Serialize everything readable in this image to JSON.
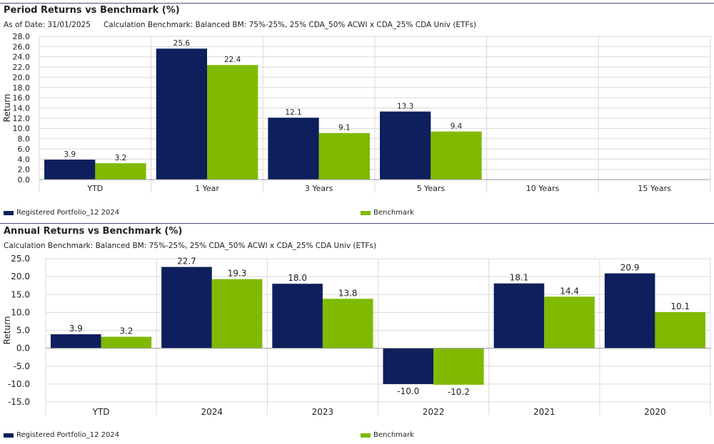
{
  "colors": {
    "portfolio": "#0d1f5c",
    "benchmark": "#7fba00",
    "grid": "#d9d9d9",
    "rule": "#4a5280"
  },
  "chart_data": [
    {
      "type": "bar",
      "title": "Period Returns vs Benchmark (%)",
      "as_of": "As of Date: 31/01/2025",
      "calc_benchmark": "Calculation Benchmark: Balanced BM: 75%-25%, 25% CDA_50% ACWI x CDA_25% CDA Univ (ETFs)",
      "ylabel": "Return",
      "ylim": [
        0,
        28
      ],
      "ystep": 2,
      "ytick_decimals": 1,
      "categories": [
        "YTD",
        "1 Year",
        "3 Years",
        "5 Years",
        "10 Years",
        "15 Years"
      ],
      "series": [
        {
          "name": "Registered Portfolio_12 2024",
          "values": [
            3.9,
            25.6,
            12.1,
            13.3,
            null,
            null
          ]
        },
        {
          "name": "Benchmark",
          "values": [
            3.2,
            22.4,
            9.1,
            9.4,
            null,
            null
          ]
        }
      ]
    },
    {
      "type": "bar",
      "title": "Annual Returns vs Benchmark (%)",
      "calc_benchmark": "Calculation Benchmark: Balanced BM: 75%-25%, 25% CDA_50% ACWI x CDA_25% CDA Univ (ETFs)",
      "ylabel": "Return",
      "ylim": [
        -15,
        25
      ],
      "ystep": 5,
      "ytick_decimals": 1,
      "categories": [
        "YTD",
        "2024",
        "2023",
        "2022",
        "2021",
        "2020"
      ],
      "series": [
        {
          "name": "Registered Portfolio_12 2024",
          "values": [
            3.9,
            22.7,
            18.0,
            -10.0,
            18.1,
            20.9
          ]
        },
        {
          "name": "Benchmark",
          "values": [
            3.2,
            19.3,
            13.8,
            -10.2,
            14.4,
            10.1
          ]
        }
      ]
    }
  ]
}
